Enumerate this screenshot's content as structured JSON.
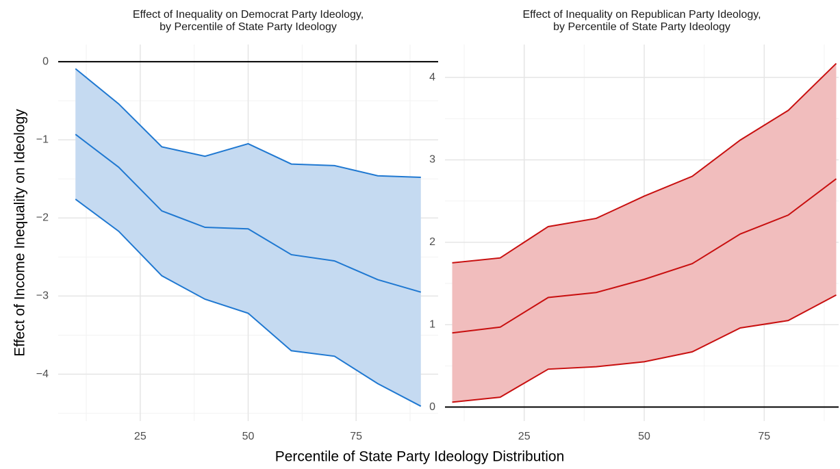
{
  "x_label": "Percentile of State Party Ideology Distribution",
  "y_label": "Effect of Income Inequality on Ideology",
  "chart_data": [
    {
      "type": "line",
      "title_lines": [
        "Effect of Inequality on Democrat Party Ideology,",
        "by Percentile of State Party Ideology"
      ],
      "x": [
        10,
        20,
        30,
        40,
        50,
        60,
        70,
        80,
        90
      ],
      "estimate": [
        -0.93,
        -1.35,
        -1.91,
        -2.12,
        -2.14,
        -2.47,
        -2.55,
        -2.79,
        -2.95
      ],
      "upper": [
        -0.09,
        -0.54,
        -1.09,
        -1.21,
        -1.05,
        -1.31,
        -1.33,
        -1.46,
        -1.48
      ],
      "lower": [
        -1.76,
        -2.17,
        -2.74,
        -3.04,
        -3.22,
        -3.7,
        -3.77,
        -4.12,
        -4.41
      ],
      "color": "#1f78d1",
      "fill_color": "#c5daf1",
      "xlim": [
        6,
        94
      ],
      "xticks": [
        25,
        50,
        75
      ],
      "xminor": [
        12.5,
        37.5,
        62.5,
        87.5
      ],
      "ylim": [
        -4.6,
        0.22
      ],
      "yticks": [
        {
          "value": -4,
          "label": "−4"
        },
        {
          "value": -3,
          "label": "−3"
        },
        {
          "value": -2,
          "label": "−2"
        },
        {
          "value": -1,
          "label": "−1"
        },
        0
      ],
      "yminor": [
        -4.5,
        -3.5,
        -2.5,
        -1.5,
        -0.5
      ],
      "hline": 0,
      "grid": true
    },
    {
      "type": "line",
      "title_lines": [
        "Effect of Inequality on Republican Party Ideology,",
        "by Percentile of State Party Ideology"
      ],
      "x": [
        10,
        20,
        30,
        40,
        50,
        60,
        70,
        80,
        90
      ],
      "estimate": [
        0.9,
        0.97,
        1.33,
        1.39,
        1.55,
        1.74,
        2.1,
        2.33,
        2.77
      ],
      "upper": [
        1.75,
        1.81,
        2.19,
        2.29,
        2.56,
        2.8,
        3.24,
        3.6,
        4.17
      ],
      "lower": [
        0.06,
        0.12,
        0.46,
        0.49,
        0.55,
        0.67,
        0.96,
        1.05,
        1.36
      ],
      "color": "#c80f0f",
      "fill_color": "#f1bdbd",
      "xlim": [
        8.5,
        90.5
      ],
      "xticks": [
        25,
        50,
        75
      ],
      "xminor": [
        12.5,
        37.5,
        62.5,
        87.5
      ],
      "ylim": [
        -0.17,
        4.4
      ],
      "yticks": [
        0,
        1,
        2,
        3,
        4
      ],
      "yminor": [
        0.5,
        1.5,
        2.5,
        3.5
      ],
      "hline": 0,
      "grid": true
    }
  ]
}
